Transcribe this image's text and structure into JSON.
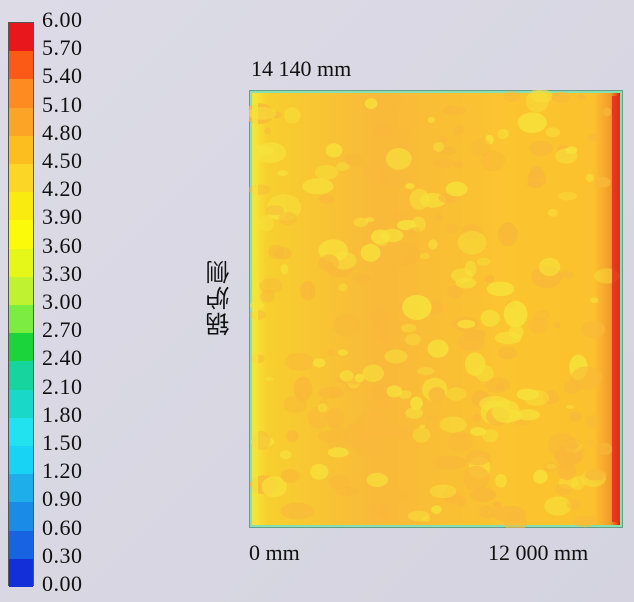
{
  "legend": {
    "ticks": [
      "6.00",
      "5.70",
      "5.40",
      "5.10",
      "4.80",
      "4.50",
      "4.20",
      "3.90",
      "3.60",
      "3.30",
      "3.00",
      "2.70",
      "2.40",
      "2.10",
      "1.80",
      "1.50",
      "1.20",
      "0.90",
      "0.60",
      "0.30",
      "0.00"
    ],
    "colors": [
      "#e8171c",
      "#fb5a16",
      "#fd8b22",
      "#fba425",
      "#fcbd1e",
      "#fcd626",
      "#f9eb10",
      "#fafa0a",
      "#e4f719",
      "#bff231",
      "#7ced3f",
      "#19d43a",
      "#17d49e",
      "#1ad8c8",
      "#22e2ef",
      "#19d3f5",
      "#1eaee9",
      "#1a8ce8",
      "#1763e1",
      "#122fd8"
    ]
  },
  "diagram": {
    "top_width_label": "14 140 mm",
    "x_start_label": "0 mm",
    "x_end_label": "12 000 mm",
    "side_label": "锅炉侧",
    "field_colors": {
      "low_edge": "#8ee8a0",
      "base": "#fbc72d",
      "warm": "#f9b83a",
      "cool": "#f6e23a",
      "hot": "#e43a1d"
    }
  }
}
